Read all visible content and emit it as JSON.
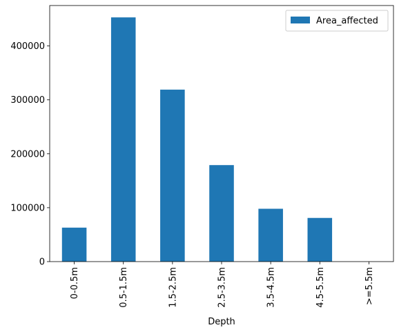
{
  "chart_data": {
    "type": "bar",
    "categories": [
      "0-0.5m",
      "0.5-1.5m",
      "1.5-2.5m",
      "2.5-3.5m",
      "3.5-4.5m",
      "4.5-5.5m",
      ">=5.5m"
    ],
    "series": [
      {
        "name": "Area_affected",
        "color": "#1f77b4",
        "values": [
          63000,
          453000,
          319000,
          179000,
          98000,
          81000,
          0
        ]
      }
    ],
    "xlabel": "Depth",
    "ylabel": "",
    "ylim": [
      0,
      475000
    ],
    "yticks": [
      0,
      100000,
      200000,
      300000,
      400000
    ],
    "ytick_labels": [
      "0",
      "100000",
      "200000",
      "300000",
      "400000"
    ],
    "grid": false,
    "legend": "top-right"
  }
}
